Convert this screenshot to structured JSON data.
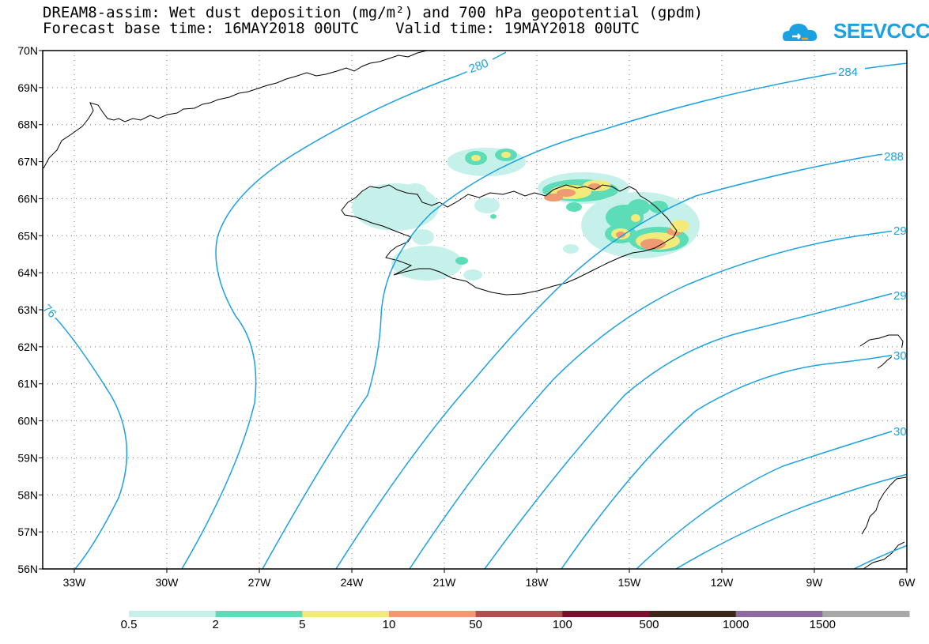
{
  "header": {
    "title_line1": "DREAM8-assim: Wet dust deposition (mg/m²) and 700 hPa geopotential (gpdm)",
    "title_line2": "Forecast base time: 16MAY2018 00UTC    Valid time: 19MAY2018 00UTC"
  },
  "logo": {
    "text": "SEEVCCC",
    "color": "#1ba1e2"
  },
  "map": {
    "lat_labels": [
      "70N",
      "69N",
      "68N",
      "67N",
      "66N",
      "65N",
      "64N",
      "63N",
      "62N",
      "61N",
      "60N",
      "59N",
      "58N",
      "57N",
      "56N"
    ],
    "lon_labels": [
      "33W",
      "30W",
      "27W",
      "24W",
      "21W",
      "18W",
      "15W",
      "12W",
      "9W",
      "6W"
    ],
    "contour_color": "#1ba1e2",
    "contour_labels": [
      "280",
      "284",
      "288",
      "29",
      "29",
      "30",
      "30",
      "76"
    ]
  },
  "colorbar": {
    "labels": [
      "0.5",
      "2",
      "5",
      "10",
      "50",
      "100",
      "500",
      "1000",
      "1500"
    ],
    "colors": [
      "#c6f1ea",
      "#5ddcb8",
      "#f3ea7c",
      "#ee9a73",
      "#a8534d",
      "#7d0f2e",
      "#3b2818",
      "#8e6aa1",
      "#a8a8a8"
    ]
  }
}
